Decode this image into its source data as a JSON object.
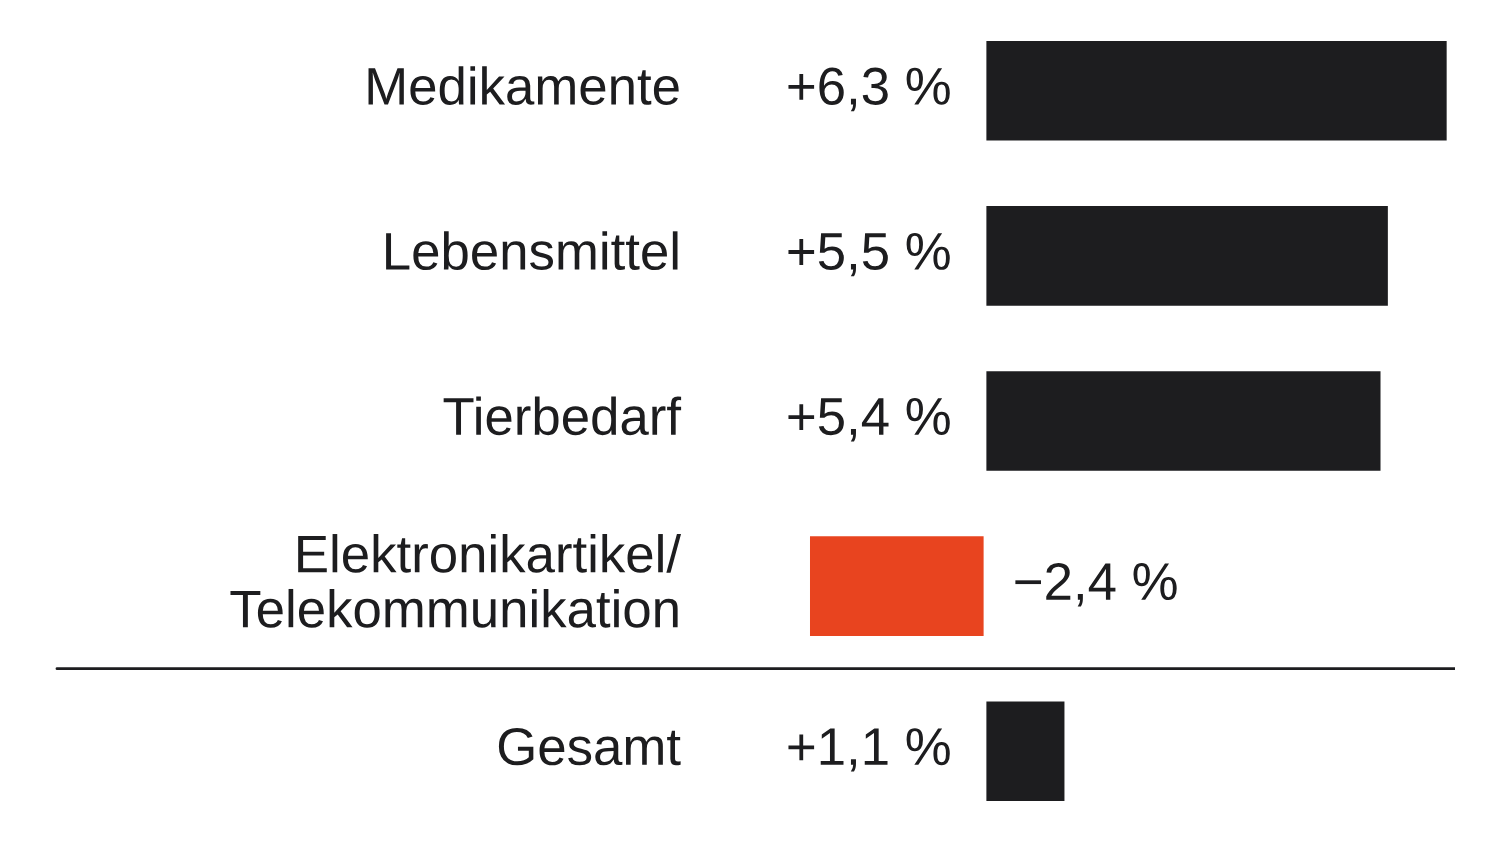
{
  "chart_data": {
    "type": "bar",
    "orientation": "horizontal",
    "categories": [
      "Medikamente",
      "Lebensmittel",
      "Tierbedarf",
      "Elektronikartikel/\nTelekommunikation",
      "Gesamt"
    ],
    "values": [
      6.3,
      5.5,
      5.4,
      -2.4,
      1.1
    ],
    "colors": [
      "#1d1d1f",
      "#1d1d1f",
      "#1d1d1f",
      "#e8441f",
      "#1d1d1f"
    ],
    "value_labels": [
      "+6,3 %",
      "+5,5 %",
      "+5,4 %",
      "−2,4 %",
      "+1,1 %"
    ]
  }
}
